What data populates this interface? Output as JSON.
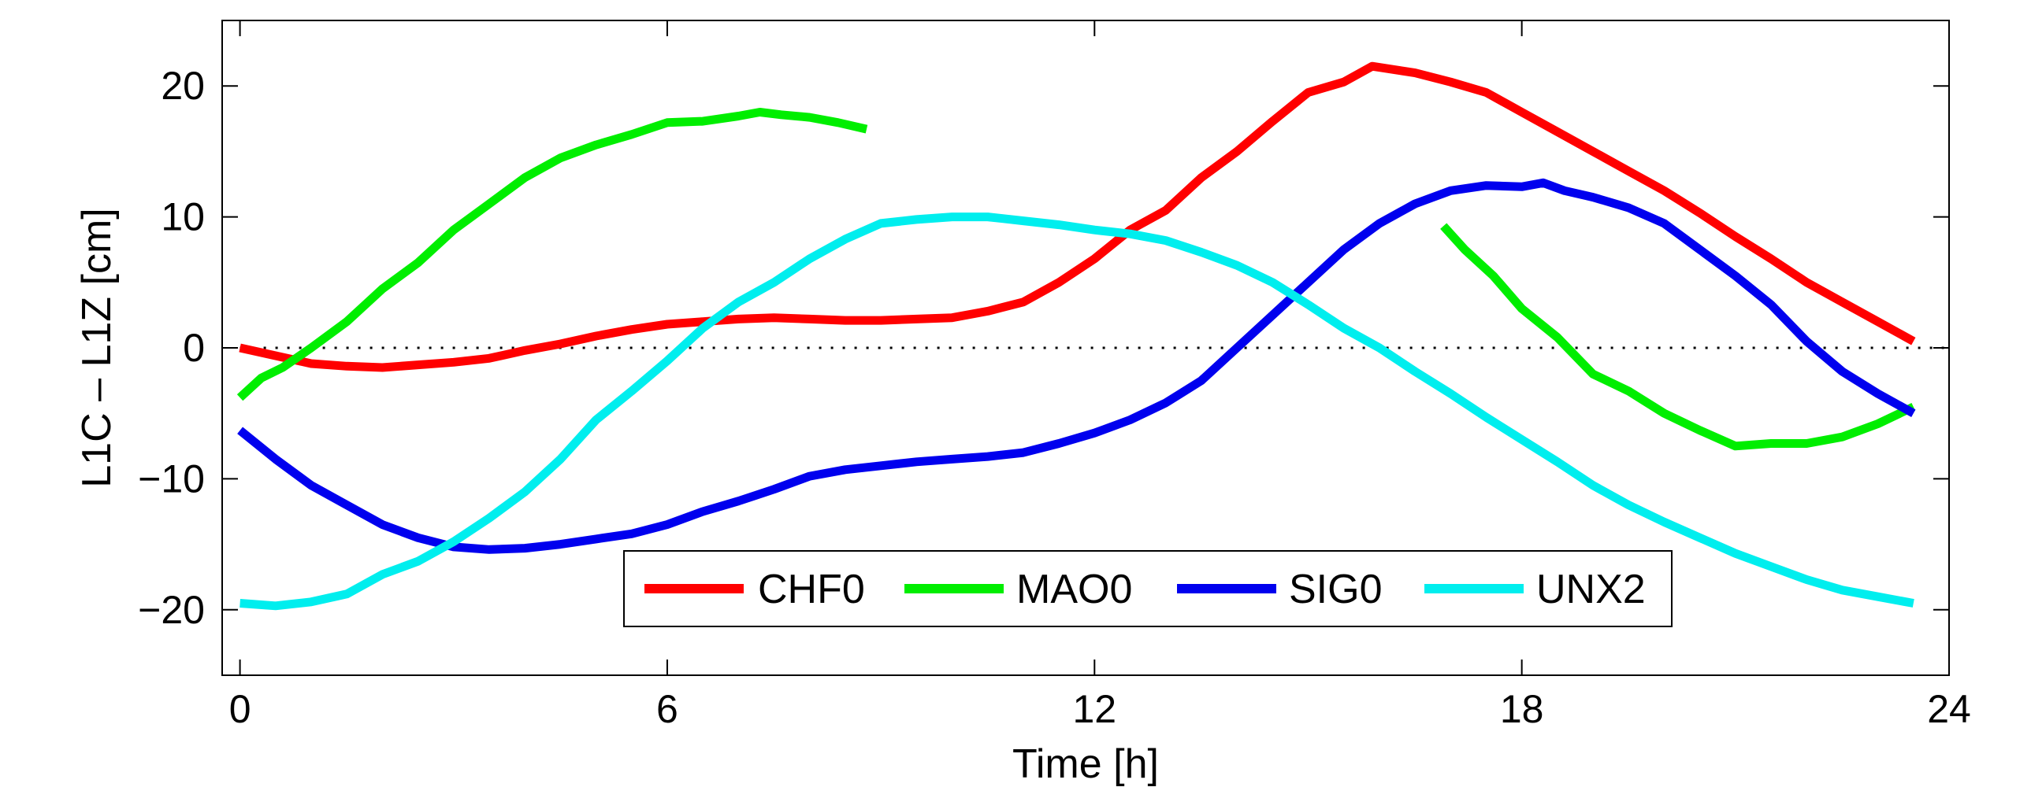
{
  "chart_data": {
    "type": "line",
    "title": "",
    "xlabel": "Time [h]",
    "ylabel": "L1C – L1Z [cm]",
    "xlim": [
      -0.25,
      24
    ],
    "ylim": [
      -25,
      25
    ],
    "xticks": [
      0,
      6,
      12,
      18,
      24
    ],
    "yticks": [
      -20,
      -10,
      0,
      10,
      20
    ],
    "xtick_labels": [
      "0",
      "6",
      "12",
      "18",
      "24"
    ],
    "ytick_labels": [
      "−20",
      "−10",
      "0",
      "10",
      "20"
    ],
    "grid": false,
    "zero_line": "dotted",
    "legend_placement": "bottom-center",
    "series": [
      {
        "name": "CHF0",
        "color": "#ff0000",
        "x": [
          0,
          0.5,
          1,
          1.5,
          2,
          2.5,
          3,
          3.5,
          4,
          4.5,
          5,
          5.5,
          6,
          6.5,
          7,
          7.5,
          8,
          8.5,
          9,
          9.5,
          10,
          10.5,
          11,
          11.5,
          12,
          12.5,
          13,
          13.5,
          14,
          14.5,
          15,
          15.5,
          15.9,
          16.5,
          17,
          17.5,
          18,
          18.5,
          19,
          19.5,
          20,
          20.5,
          21,
          21.5,
          22,
          22.5,
          23,
          23.5
        ],
        "y": [
          0,
          -0.6,
          -1.2,
          -1.4,
          -1.5,
          -1.3,
          -1.1,
          -0.8,
          -0.2,
          0.3,
          0.9,
          1.4,
          1.8,
          2.0,
          2.2,
          2.3,
          2.2,
          2.1,
          2.1,
          2.2,
          2.3,
          2.8,
          3.5,
          5.0,
          6.8,
          9.0,
          10.5,
          13.0,
          15.0,
          17.3,
          19.5,
          20.3,
          21.5,
          21.0,
          20.3,
          19.5,
          18.0,
          16.5,
          15.0,
          13.5,
          12.0,
          10.3,
          8.5,
          6.8,
          5.0,
          3.5,
          2.0,
          0.5
        ]
      },
      {
        "name": "MAO0",
        "color": "#00ee00",
        "x": [
          0,
          0.3,
          0.6,
          1,
          1.5,
          2,
          2.5,
          3,
          3.5,
          4,
          4.5,
          5,
          5.5,
          6,
          6.5,
          7,
          7.3,
          7.6,
          8,
          8.4,
          8.8
        ],
        "y": [
          -3.8,
          -2.3,
          -1.5,
          0,
          2,
          4.5,
          6.5,
          9,
          11,
          13,
          14.5,
          15.5,
          16.3,
          17.2,
          17.3,
          17.7,
          18.0,
          17.8,
          17.6,
          17.2,
          16.7
        ],
        "x2": [
          16.9,
          17.2,
          17.6,
          18,
          18.5,
          19,
          19.5,
          20,
          20.5,
          21,
          21.5,
          22,
          22.5,
          23,
          23.5
        ],
        "y2": [
          9.3,
          7.5,
          5.5,
          3,
          0.8,
          -2,
          -3.3,
          -5,
          -6.3,
          -7.5,
          -7.3,
          -7.3,
          -6.8,
          -5.8,
          -4.5
        ]
      },
      {
        "name": "SIG0",
        "color": "#0000ee",
        "x": [
          0,
          0.5,
          1,
          1.5,
          2,
          2.5,
          3,
          3.5,
          4,
          4.5,
          5,
          5.5,
          6,
          6.5,
          7,
          7.5,
          8,
          8.5,
          9,
          9.5,
          10,
          10.5,
          11,
          11.5,
          12,
          12.5,
          13,
          13.5,
          14,
          14.5,
          15,
          15.5,
          16,
          16.5,
          17,
          17.5,
          18,
          18.3,
          18.6,
          19,
          19.5,
          20,
          20.5,
          21,
          21.5,
          22,
          22.5,
          23,
          23.5
        ],
        "y": [
          -6.3,
          -8.5,
          -10.5,
          -12,
          -13.5,
          -14.5,
          -15.2,
          -15.4,
          -15.3,
          -15,
          -14.6,
          -14.2,
          -13.5,
          -12.5,
          -11.7,
          -10.8,
          -9.8,
          -9.3,
          -9.0,
          -8.7,
          -8.5,
          -8.3,
          -8.0,
          -7.3,
          -6.5,
          -5.5,
          -4.2,
          -2.5,
          0,
          2.5,
          5,
          7.5,
          9.5,
          11,
          12,
          12.4,
          12.3,
          12.6,
          12,
          11.5,
          10.7,
          9.5,
          7.5,
          5.5,
          3.3,
          0.5,
          -1.8,
          -3.5,
          -5
        ]
      },
      {
        "name": "UNX2",
        "color": "#00eeee",
        "x": [
          0,
          0.5,
          1,
          1.5,
          2,
          2.5,
          3,
          3.5,
          4,
          4.5,
          5,
          5.5,
          6,
          6.5,
          7,
          7.5,
          8,
          8.5,
          9,
          9.5,
          10,
          10.5,
          11,
          11.5,
          12,
          12.5,
          13,
          13.5,
          14,
          14.5,
          15,
          15.5,
          16,
          16.5,
          17,
          17.5,
          18,
          18.5,
          19,
          19.5,
          20,
          20.5,
          21,
          21.5,
          22,
          22.5,
          23,
          23.5
        ],
        "y": [
          -19.5,
          -19.7,
          -19.4,
          -18.8,
          -17.3,
          -16.3,
          -14.8,
          -13.0,
          -11.0,
          -8.5,
          -5.5,
          -3.3,
          -1.0,
          1.5,
          3.5,
          5.0,
          6.8,
          8.3,
          9.5,
          9.8,
          10.0,
          10.0,
          9.7,
          9.4,
          9.0,
          8.7,
          8.2,
          7.3,
          6.3,
          5.0,
          3.3,
          1.5,
          0,
          -1.8,
          -3.5,
          -5.3,
          -7.0,
          -8.7,
          -10.5,
          -12.0,
          -13.3,
          -14.5,
          -15.7,
          -16.7,
          -17.7,
          -18.5,
          -19.0,
          -19.5
        ]
      }
    ]
  }
}
